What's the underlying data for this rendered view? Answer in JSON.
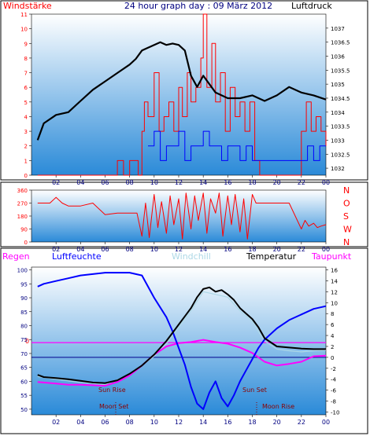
{
  "colors": {
    "wind": "#ff0000",
    "gust": "#0000ff",
    "pressure": "#000000",
    "humidity": "#0000ff",
    "temperature": "#000000",
    "windchill": "#add8e6",
    "dewpoint": "#ff00ff",
    "plot_bg_top": "#ffffff",
    "plot_bg_bottom": "#2a8ad8"
  },
  "hour_ticks": [
    "02",
    "04",
    "06",
    "08",
    "10",
    "12",
    "14",
    "16",
    "18",
    "20",
    "22",
    "00"
  ],
  "chart_data": [
    {
      "type": "line",
      "title": "24 hour graph day : 09 März 2012",
      "left_label": "Windstärke",
      "right_label": "Luftdruck",
      "x_ticks": [
        "02",
        "04",
        "06",
        "08",
        "10",
        "12",
        "14",
        "16",
        "18",
        "20",
        "22",
        "00"
      ],
      "y_left_ticks": [
        "0",
        "1",
        "2",
        "3",
        "4",
        "5",
        "6",
        "7",
        "8",
        "9",
        "10",
        "11"
      ],
      "y_left_range": [
        0,
        11
      ],
      "y_right_ticks": [
        "1032",
        "1032.5",
        "1033",
        "1033.5",
        "1034",
        "1034.5",
        "1035",
        "1035.5",
        "1036",
        "1036.5",
        "1037"
      ],
      "y_right_range": [
        1031.75,
        1037.5
      ],
      "series": [
        {
          "name": "Luftdruck",
          "axis": "right",
          "x": [
            0.5,
            1,
            2,
            3,
            4,
            5,
            6,
            7,
            8,
            8.5,
            9,
            9.5,
            10,
            10.5,
            11,
            11.5,
            12,
            12.5,
            13,
            13.5,
            14,
            15,
            16,
            17,
            18,
            19,
            20,
            21,
            22,
            23,
            24
          ],
          "y": [
            1033.0,
            1033.6,
            1033.9,
            1034.0,
            1034.4,
            1034.8,
            1035.1,
            1035.4,
            1035.7,
            1035.9,
            1036.2,
            1036.3,
            1036.4,
            1036.5,
            1036.4,
            1036.45,
            1036.4,
            1036.2,
            1035.3,
            1034.9,
            1035.3,
            1034.7,
            1034.5,
            1034.5,
            1034.6,
            1034.4,
            1034.6,
            1034.9,
            1034.7,
            1034.6,
            1034.45
          ]
        },
        {
          "name": "Windstärke",
          "axis": "left",
          "x": [
            0.5,
            6.5,
            7.0,
            7.5,
            8.0,
            8.7,
            9.0,
            9.2,
            9.5,
            10.0,
            10.4,
            10.8,
            11.2,
            11.6,
            12.0,
            12.3,
            12.7,
            13.0,
            13.4,
            13.8,
            14.0,
            14.3,
            14.7,
            15.0,
            15.4,
            15.8,
            16.2,
            16.6,
            17.0,
            17.4,
            17.8,
            18.2,
            18.6,
            19.0,
            20.0,
            21.0,
            21.5,
            22.0,
            22.4,
            22.8,
            23.2,
            23.6,
            24.0
          ],
          "y": [
            0,
            0,
            1,
            0,
            1,
            0,
            3,
            5,
            4,
            7,
            3,
            4,
            5,
            3,
            6,
            4,
            7,
            5,
            6,
            8,
            11,
            6,
            9,
            5,
            7,
            3,
            6,
            4,
            5,
            3,
            5,
            1,
            0,
            0,
            0,
            0,
            0,
            3,
            5,
            3,
            4,
            3,
            2
          ]
        },
        {
          "name": "Böen",
          "axis": "left",
          "x": [
            9.5,
            10.0,
            10.5,
            11.0,
            11.5,
            12.0,
            12.5,
            13.0,
            13.5,
            14.0,
            14.5,
            15.0,
            15.5,
            16.0,
            16.5,
            17.0,
            17.5,
            18.0,
            22.0,
            22.5,
            23.0,
            23.5,
            24.0
          ],
          "y": [
            2,
            3,
            1,
            2,
            2,
            3,
            1,
            2,
            2,
            3,
            2,
            2,
            1,
            2,
            2,
            1,
            2,
            1,
            1,
            2,
            1,
            2,
            2
          ]
        }
      ]
    },
    {
      "type": "line",
      "right_labels": [
        "N",
        "W",
        "S",
        "O",
        "N"
      ],
      "x_ticks": [
        "02",
        "04",
        "06",
        "08",
        "10",
        "12",
        "14",
        "16",
        "18",
        "20",
        "22",
        "00"
      ],
      "y_ticks": [
        "0",
        "90",
        "180",
        "270",
        "360"
      ],
      "y_range": [
        0,
        360
      ],
      "series": [
        {
          "name": "Windrichtung",
          "x": [
            0.5,
            1.5,
            2.0,
            2.5,
            3.0,
            4.0,
            5.0,
            6.0,
            7.0,
            8.0,
            8.6,
            9.0,
            9.3,
            9.6,
            10.0,
            10.3,
            10.6,
            11.0,
            11.3,
            11.6,
            12.0,
            12.3,
            12.6,
            13.0,
            13.3,
            13.6,
            14.0,
            14.3,
            14.6,
            15.0,
            15.3,
            15.6,
            16.0,
            16.3,
            16.6,
            17.0,
            17.3,
            17.6,
            18.0,
            18.3,
            19.0,
            20.0,
            21.0,
            22.0,
            22.3,
            22.6,
            23.0,
            23.3,
            23.6,
            24.0
          ],
          "y": [
            270,
            270,
            310,
            270,
            250,
            250,
            270,
            190,
            200,
            200,
            200,
            40,
            270,
            30,
            330,
            100,
            280,
            60,
            320,
            120,
            300,
            20,
            340,
            90,
            320,
            150,
            340,
            60,
            300,
            200,
            340,
            40,
            320,
            120,
            330,
            70,
            300,
            20,
            330,
            270,
            270,
            270,
            270,
            90,
            150,
            110,
            130,
            100,
            110,
            120
          ]
        }
      ]
    },
    {
      "type": "line",
      "left_label": "Regen",
      "left_label_2": "Luftfeuchte",
      "legend": [
        "Windchill",
        "Temperatur",
        "Taupunkt"
      ],
      "annotations": [
        "Sun Rise",
        "Moon Set",
        "Sun Set",
        "Moon Rise"
      ],
      "rain_marker": "0",
      "x_ticks": [
        "02",
        "04",
        "06",
        "08",
        "10",
        "12",
        "14",
        "16",
        "18",
        "20",
        "22",
        "00"
      ],
      "y_left_ticks": [
        "50",
        "55",
        "60",
        "65",
        "70",
        "75",
        "80",
        "85",
        "90",
        "95",
        "100"
      ],
      "y_left_range": [
        48,
        101
      ],
      "y_right_ticks": [
        "-10",
        "-8",
        "-6",
        "-4",
        "-2",
        "0",
        "2",
        "4",
        "6",
        "8",
        "10",
        "12",
        "14",
        "16"
      ],
      "y_right_range": [
        -10.5,
        16.5
      ],
      "series": [
        {
          "name": "Luftfeuchte",
          "axis": "left",
          "x": [
            0.5,
            1,
            2,
            3,
            4,
            5,
            6,
            7,
            8,
            9,
            10,
            11,
            11.5,
            12,
            12.5,
            13,
            13.5,
            14,
            14.5,
            15,
            15.5,
            16,
            16.5,
            17,
            17.5,
            18,
            18.5,
            19,
            20,
            21,
            22,
            23,
            24
          ],
          "y": [
            94,
            95,
            96,
            97,
            98,
            98.5,
            99,
            99,
            99,
            98,
            90,
            83,
            78,
            72,
            66,
            58,
            52,
            50,
            56,
            60,
            54,
            51,
            55,
            60,
            64,
            68,
            72,
            75,
            79,
            82,
            84,
            86,
            87
          ]
        },
        {
          "name": "Temperatur",
          "axis": "right",
          "x": [
            0.5,
            1,
            2,
            3,
            4,
            5,
            6,
            7,
            8,
            9,
            10,
            11,
            11.5,
            12,
            12.5,
            13,
            13.5,
            14,
            14.5,
            15,
            15.5,
            16,
            16.5,
            17,
            17.5,
            18,
            18.5,
            19,
            20,
            21,
            22,
            23,
            24
          ],
          "y": [
            -3.2,
            -3.6,
            -3.8,
            -4.0,
            -4.3,
            -4.6,
            -4.7,
            -4.2,
            -3.0,
            -1.5,
            0.5,
            3.0,
            4.5,
            6.0,
            7.5,
            9.0,
            11.0,
            12.5,
            12.8,
            12.0,
            12.3,
            11.5,
            10.5,
            9.0,
            8.0,
            7.0,
            5.5,
            3.5,
            2.0,
            1.8,
            1.6,
            1.5,
            1.5
          ]
        },
        {
          "name": "Windchill",
          "axis": "right",
          "x": [
            0.5,
            2,
            4,
            6,
            8,
            10,
            11,
            12,
            13,
            14,
            15,
            16,
            17,
            18,
            19,
            20,
            21,
            22,
            23,
            24
          ],
          "y": [
            -3.5,
            -4.0,
            -4.6,
            -5.0,
            -3.2,
            0.2,
            2.5,
            5.5,
            8.5,
            12.0,
            11.5,
            11.0,
            8.5,
            6.5,
            3.0,
            1.5,
            1.2,
            1.0,
            1.2,
            1.3
          ]
        },
        {
          "name": "Taupunkt",
          "axis": "right",
          "x": [
            0.5,
            1,
            2,
            3,
            4,
            5,
            6,
            7,
            8,
            9,
            10,
            11,
            12,
            13,
            14,
            15,
            16,
            17,
            18,
            19,
            20,
            21,
            22,
            23,
            24
          ],
          "y": [
            -4.5,
            -4.6,
            -4.8,
            -5.0,
            -5.0,
            -5.1,
            -5.2,
            -4.5,
            -3.3,
            -1.5,
            0.5,
            2.0,
            2.6,
            2.8,
            3.2,
            2.8,
            2.5,
            1.8,
            0.8,
            -0.8,
            -1.5,
            -1.2,
            -0.8,
            0.2,
            0.3
          ]
        }
      ]
    }
  ]
}
